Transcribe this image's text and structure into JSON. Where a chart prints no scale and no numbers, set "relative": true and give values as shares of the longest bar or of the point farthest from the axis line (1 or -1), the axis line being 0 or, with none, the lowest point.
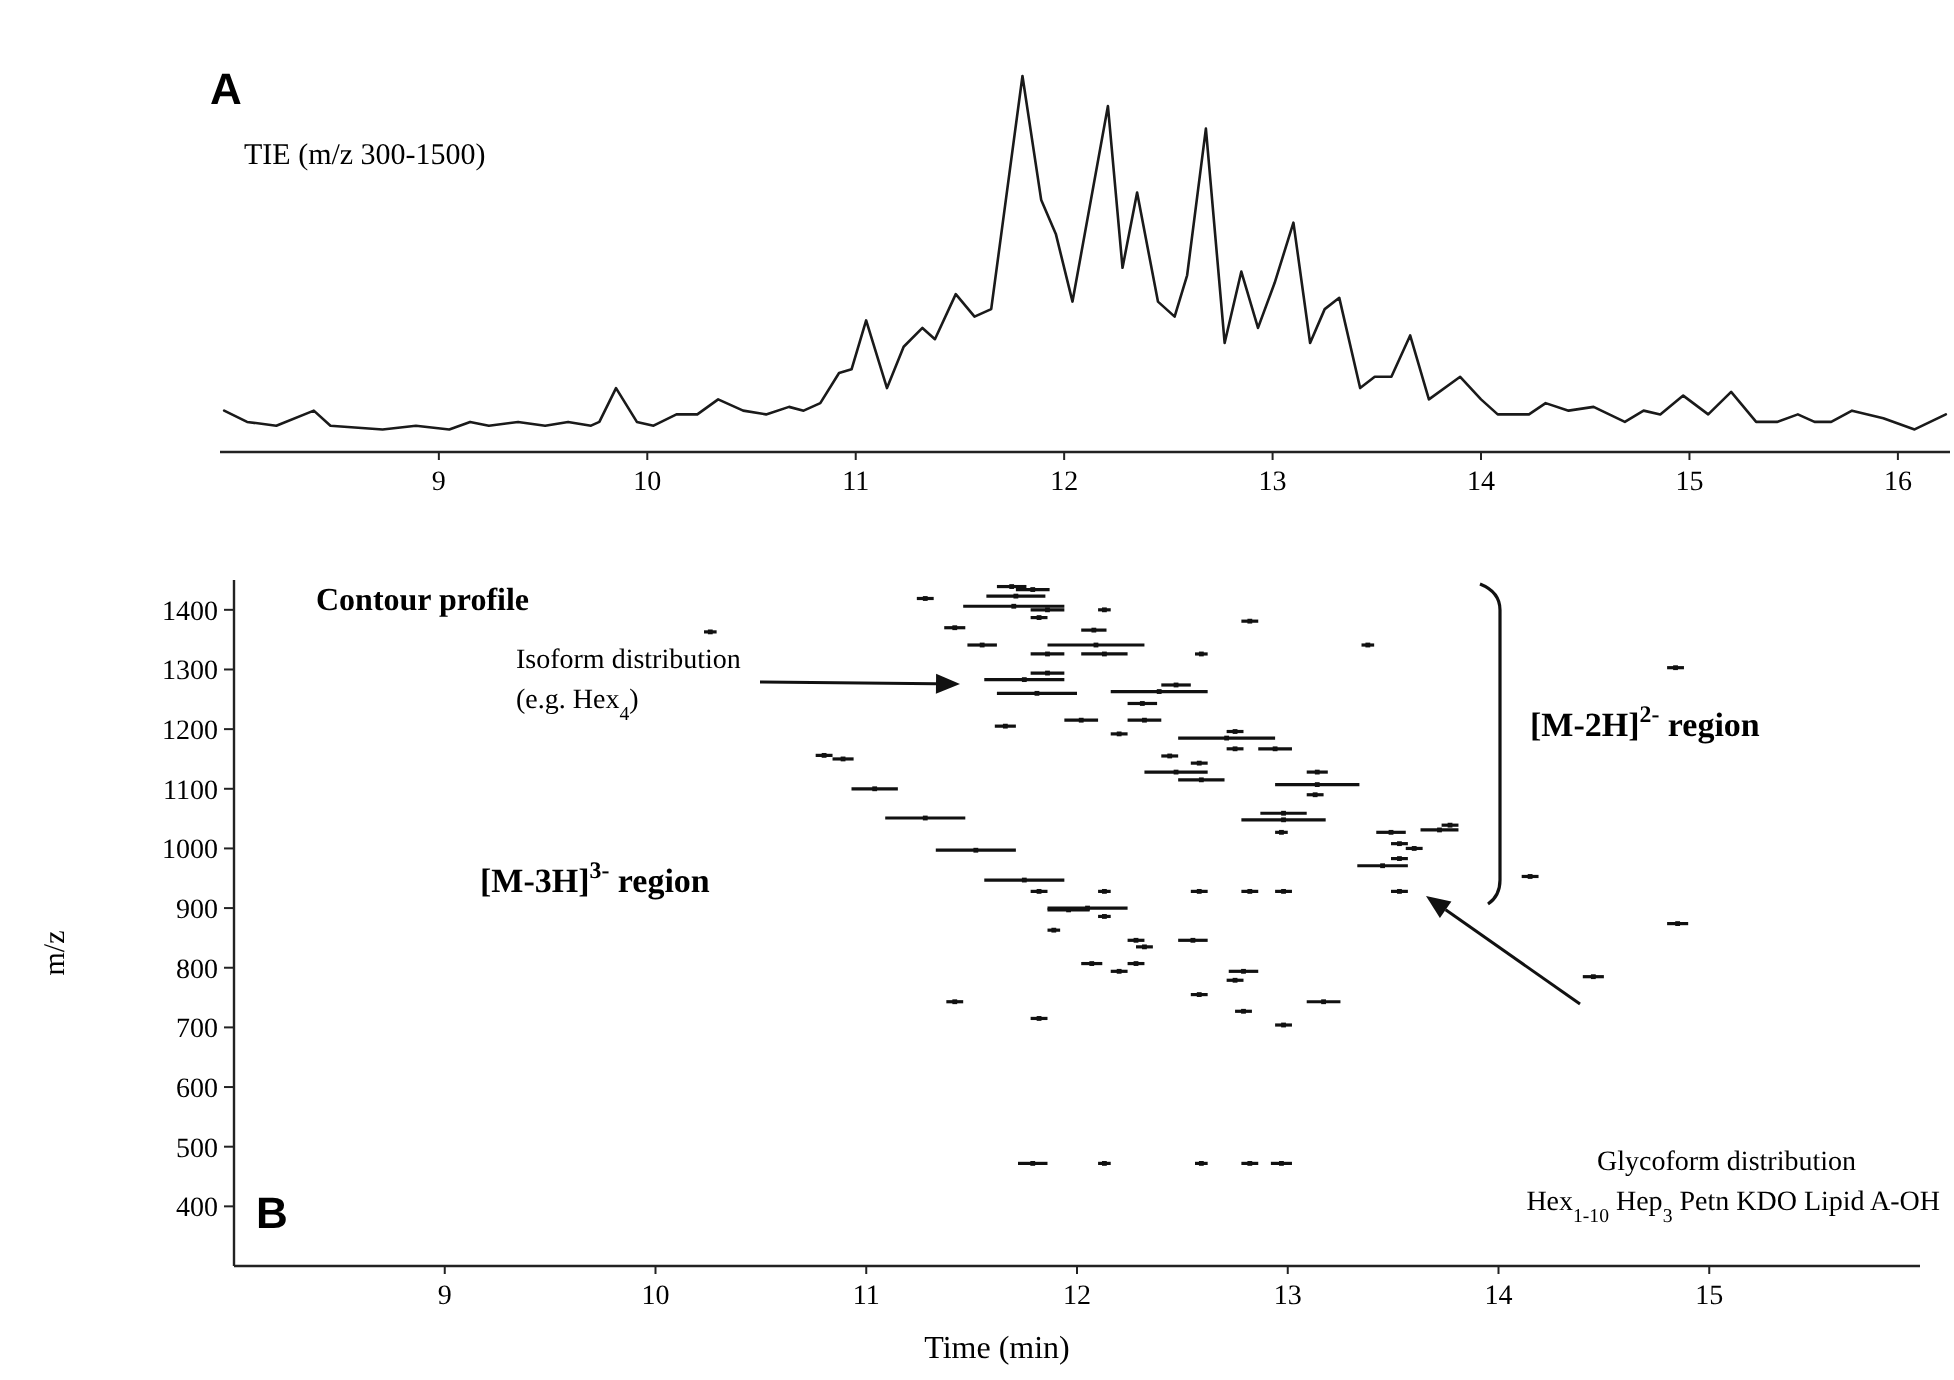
{
  "chart_data": [
    {
      "type": "line",
      "title": "A",
      "relative": true,
      "tick_labels": "x",
      "grid": false,
      "marker": "none",
      "line_style": "solid",
      "annotations": [
        "TIE (m/z 300-1500)"
      ],
      "xlim": [
        7.95,
        16.25
      ],
      "xticks": [
        9,
        10,
        11,
        12,
        13,
        14,
        15,
        16
      ],
      "series": [
        {
          "color": "#1a1a1a",
          "x": [
            7.97,
            8.08,
            8.22,
            8.4,
            8.48,
            8.73,
            8.89,
            9.05,
            9.15,
            9.24,
            9.38,
            9.51,
            9.62,
            9.73,
            9.77,
            9.85,
            9.95,
            10.03,
            10.14,
            10.24,
            10.34,
            10.46,
            10.57,
            10.68,
            10.75,
            10.83,
            10.92,
            10.98,
            11.05,
            11.15,
            11.23,
            11.32,
            11.38,
            11.48,
            11.57,
            11.65,
            11.8,
            11.89,
            11.96,
            12.04,
            12.21,
            12.28,
            12.35,
            12.45,
            12.53,
            12.59,
            12.68,
            12.77,
            12.85,
            12.93,
            13.01,
            13.1,
            13.18,
            13.25,
            13.32,
            13.42,
            13.49,
            13.57,
            13.66,
            13.75,
            13.9,
            14.0,
            14.08,
            14.23,
            14.31,
            14.42,
            14.54,
            14.69,
            14.78,
            14.86,
            14.97,
            15.09,
            15.2,
            15.32,
            15.42,
            15.52,
            15.6,
            15.68,
            15.78,
            15.93,
            16.08,
            16.23
          ],
          "values": [
            0.11,
            0.08,
            0.07,
            0.11,
            0.07,
            0.06,
            0.07,
            0.06,
            0.08,
            0.07,
            0.08,
            0.07,
            0.08,
            0.07,
            0.08,
            0.17,
            0.08,
            0.07,
            0.1,
            0.1,
            0.14,
            0.11,
            0.1,
            0.12,
            0.11,
            0.13,
            0.21,
            0.22,
            0.35,
            0.17,
            0.28,
            0.33,
            0.3,
            0.42,
            0.36,
            0.38,
            1.0,
            0.67,
            0.58,
            0.4,
            0.92,
            0.49,
            0.69,
            0.4,
            0.36,
            0.47,
            0.86,
            0.29,
            0.48,
            0.33,
            0.45,
            0.61,
            0.29,
            0.38,
            0.41,
            0.17,
            0.2,
            0.2,
            0.31,
            0.14,
            0.2,
            0.14,
            0.1,
            0.1,
            0.13,
            0.11,
            0.12,
            0.08,
            0.11,
            0.1,
            0.15,
            0.1,
            0.16,
            0.08,
            0.08,
            0.1,
            0.08,
            0.08,
            0.11,
            0.09,
            0.06,
            0.1
          ]
        }
      ]
    },
    {
      "type": "scatter",
      "title": "B",
      "xlabel": "Time (min)",
      "ylabel": "m/z",
      "grid": false,
      "marker": "square",
      "xlim": [
        8,
        16
      ],
      "xticks": [
        9,
        10,
        11,
        12,
        13,
        14,
        15
      ],
      "ylim": [
        300,
        1450
      ],
      "yticks": [
        400,
        500,
        600,
        700,
        800,
        900,
        1000,
        1100,
        1200,
        1300,
        1400
      ],
      "annotations": [
        "Contour profile",
        "Isoform distribution (e.g. Hex$_{4}$)",
        "[M-2H]$^{2-}$ region",
        "[M-3H]$^{3-}$ region",
        "Glycoform distribution Hex$_{1-10}$ Hep$_{3}$ Petn KDO Lipid A-OH"
      ],
      "series": [
        {
          "color": "#111111",
          "x": [
            11.28,
            11.69,
            11.71,
            11.7,
            10.26,
            11.42,
            11.55,
            11.75,
            11.81,
            11.66,
            10.8,
            10.89,
            11.04,
            11.28,
            11.52,
            11.75,
            11.96,
            11.89,
            12.07,
            11.42,
            11.79,
            12.13,
            12.59,
            12.82,
            12.97,
            11.79,
            11.86,
            12.13,
            11.82,
            12.82,
            12.08,
            12.09,
            11.86,
            12.13,
            12.59,
            13.38,
            14.84,
            12.39,
            11.86,
            12.47,
            12.31,
            12.02,
            12.32,
            12.2,
            12.71,
            12.75,
            12.75,
            12.94,
            12.44,
            12.58,
            12.47,
            12.59,
            13.14,
            13.14,
            13.13,
            12.98,
            12.98,
            12.97,
            13.49,
            13.72,
            13.77,
            13.53,
            13.6,
            13.53,
            13.45,
            14.15,
            11.82,
            12.13,
            12.58,
            12.82,
            12.98,
            13.53,
            12.05,
            12.13,
            12.28,
            12.55,
            12.32,
            12.28,
            12.2,
            12.79,
            12.75,
            14.45,
            14.85,
            12.58,
            13.17,
            12.79,
            11.82,
            12.98
          ],
          "values": [
            1419,
            1439,
            1423,
            1406,
            1363,
            1370,
            1341,
            1283,
            1260,
            1205,
            1156,
            1150,
            1100,
            1051,
            997,
            947,
            897,
            863,
            807,
            743,
            472,
            472,
            472,
            472,
            472,
            1434,
            1400,
            1400,
            1387,
            1381,
            1366,
            1341,
            1326,
            1326,
            1326,
            1341,
            1303,
            1263,
            1294,
            1274,
            1243,
            1215,
            1215,
            1192,
            1185,
            1196,
            1167,
            1167,
            1155,
            1143,
            1128,
            1115,
            1128,
            1107,
            1090,
            1059,
            1048,
            1027,
            1027,
            1031,
            1039,
            1008,
            1000,
            983,
            971,
            953,
            928,
            928,
            928,
            928,
            928,
            928,
            900,
            886,
            846,
            846,
            835,
            807,
            794,
            794,
            779,
            785,
            874,
            755,
            743,
            727,
            715,
            704
          ],
          "xerrors": [
            0.04,
            0.07,
            0.14,
            0.24,
            0.03,
            0.05,
            0.07,
            0.19,
            0.19,
            0.05,
            0.04,
            0.05,
            0.11,
            0.19,
            0.19,
            0.19,
            0.1,
            0.03,
            0.05,
            0.04,
            0.07,
            0.03,
            0.03,
            0.04,
            0.05,
            0.08,
            0.08,
            0.03,
            0.04,
            0.04,
            0.06,
            0.23,
            0.08,
            0.11,
            0.03,
            0.03,
            0.04,
            0.23,
            0.08,
            0.07,
            0.07,
            0.08,
            0.08,
            0.04,
            0.23,
            0.04,
            0.04,
            0.08,
            0.04,
            0.04,
            0.15,
            0.11,
            0.05,
            0.2,
            0.04,
            0.11,
            0.2,
            0.03,
            0.07,
            0.09,
            0.04,
            0.04,
            0.04,
            0.04,
            0.12,
            0.04,
            0.04,
            0.03,
            0.04,
            0.04,
            0.04,
            0.04,
            0.19,
            0.03,
            0.04,
            0.07,
            0.04,
            0.04,
            0.04,
            0.07,
            0.04,
            0.05,
            0.05,
            0.04,
            0.08,
            0.04,
            0.04,
            0.04
          ]
        }
      ]
    }
  ]
}
